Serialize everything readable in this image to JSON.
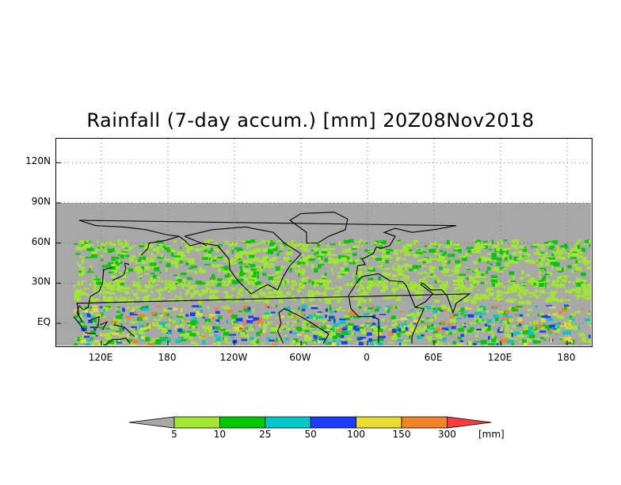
{
  "title": "Rainfall (7-day accum.) [mm] 20Z08Nov2018",
  "map": {
    "projection": "cylindrical-equidistant",
    "lat_range": [
      -15,
      135
    ],
    "lon_range": [
      60,
      420
    ],
    "data_lat_top": 90,
    "no_data_color": "#a8a8a8",
    "grid": "dotted",
    "y_ticks": [
      {
        "lat": 120,
        "label": "120N"
      },
      {
        "lat": 90,
        "label": "90N"
      },
      {
        "lat": 60,
        "label": "60N"
      },
      {
        "lat": 30,
        "label": "30N"
      },
      {
        "lat": 0,
        "label": "EQ"
      }
    ],
    "x_ticks": [
      {
        "lon": 120,
        "label": "120E"
      },
      {
        "lon": 180,
        "label": "180"
      },
      {
        "lon": 240,
        "label": "120W"
      },
      {
        "lon": 300,
        "label": "60W"
      },
      {
        "lon": 360,
        "label": "0"
      },
      {
        "lon": 420,
        "label": "60E"
      },
      {
        "lon": 480,
        "label": "120E"
      },
      {
        "lon": 540,
        "label": "180"
      }
    ]
  },
  "colorbar": {
    "units": "[mm]",
    "bins": [
      {
        "color": "#a0e632"
      },
      {
        "color": "#00c800"
      },
      {
        "color": "#00c8c8"
      },
      {
        "color": "#1e3cff"
      },
      {
        "color": "#e6dc32"
      },
      {
        "color": "#f08228"
      },
      {
        "color": "#fa3c3c"
      }
    ],
    "low_color": "#a8a8a8",
    "labels": [
      "5",
      "10",
      "25",
      "50",
      "100",
      "150",
      "300"
    ]
  }
}
